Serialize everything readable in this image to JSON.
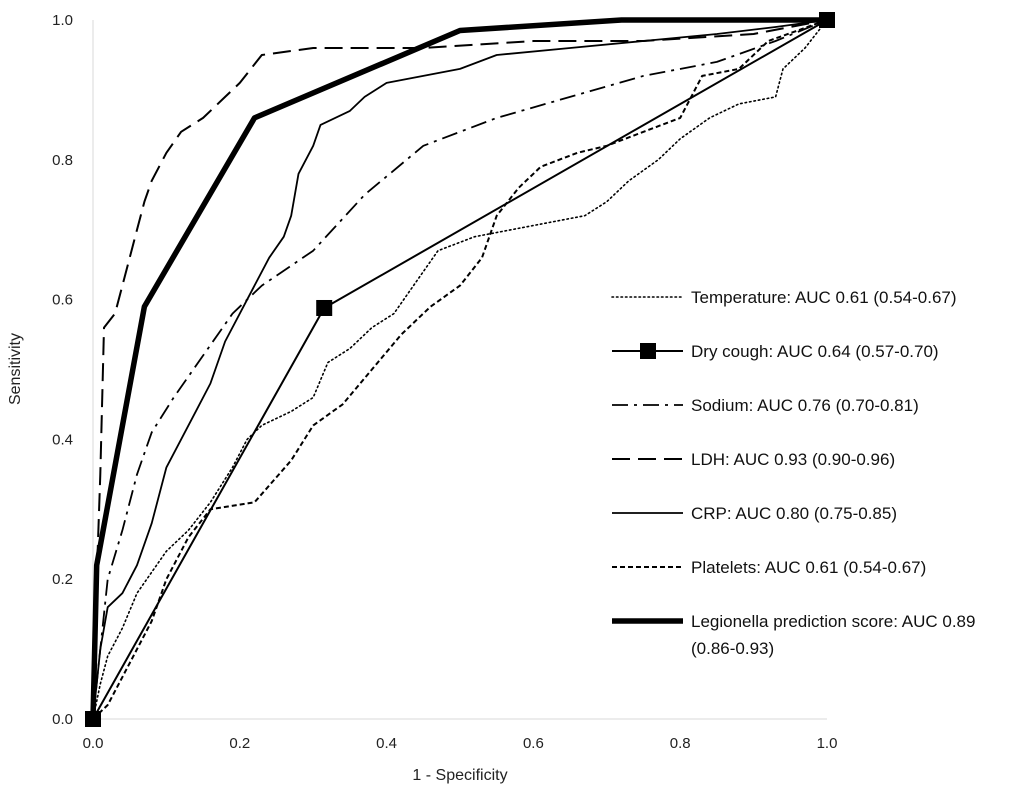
{
  "chart_data": {
    "type": "line",
    "title": "",
    "xlabel": "1 - Specificity",
    "ylabel": "Sensitivity",
    "xlim": [
      0,
      1
    ],
    "ylim": [
      0,
      1
    ],
    "x_ticks": [
      "0.0",
      "0.2",
      "0.4",
      "0.6",
      "0.8",
      "1.0"
    ],
    "y_ticks": [
      "0.0",
      "0.2",
      "0.4",
      "0.6",
      "0.8",
      "1.0"
    ],
    "grid": false,
    "legend_position": "right",
    "series": [
      {
        "name": "Temperature: AUC 0.61 (0.54-0.67)",
        "style": "dotted",
        "color": "#000000",
        "points": [
          [
            0,
            0
          ],
          [
            0.01,
            0.05
          ],
          [
            0.02,
            0.09
          ],
          [
            0.04,
            0.13
          ],
          [
            0.06,
            0.18
          ],
          [
            0.08,
            0.21
          ],
          [
            0.1,
            0.24
          ],
          [
            0.13,
            0.27
          ],
          [
            0.16,
            0.31
          ],
          [
            0.19,
            0.36
          ],
          [
            0.21,
            0.4
          ],
          [
            0.23,
            0.42
          ],
          [
            0.27,
            0.44
          ],
          [
            0.3,
            0.46
          ],
          [
            0.32,
            0.51
          ],
          [
            0.35,
            0.53
          ],
          [
            0.38,
            0.56
          ],
          [
            0.41,
            0.58
          ],
          [
            0.43,
            0.61
          ],
          [
            0.47,
            0.67
          ],
          [
            0.52,
            0.69
          ],
          [
            0.57,
            0.7
          ],
          [
            0.62,
            0.71
          ],
          [
            0.67,
            0.72
          ],
          [
            0.7,
            0.74
          ],
          [
            0.73,
            0.77
          ],
          [
            0.77,
            0.8
          ],
          [
            0.8,
            0.83
          ],
          [
            0.84,
            0.86
          ],
          [
            0.88,
            0.88
          ],
          [
            0.93,
            0.89
          ],
          [
            0.94,
            0.93
          ],
          [
            0.97,
            0.96
          ],
          [
            1.0,
            1.0
          ]
        ]
      },
      {
        "name": "Dry cough: AUC 0.64 (0.57-0.70)",
        "style": "solid-square-markers",
        "color": "#000000",
        "points": [
          [
            0,
            0
          ],
          [
            0.315,
            0.588
          ],
          [
            1.0,
            1.0
          ]
        ]
      },
      {
        "name": "Sodium: AUC 0.76 (0.70-0.81)",
        "style": "dash-dot",
        "color": "#000000",
        "points": [
          [
            0,
            0
          ],
          [
            0.01,
            0.1
          ],
          [
            0.02,
            0.2
          ],
          [
            0.04,
            0.27
          ],
          [
            0.06,
            0.35
          ],
          [
            0.08,
            0.41
          ],
          [
            0.11,
            0.46
          ],
          [
            0.15,
            0.52
          ],
          [
            0.19,
            0.58
          ],
          [
            0.23,
            0.62
          ],
          [
            0.3,
            0.67
          ],
          [
            0.37,
            0.75
          ],
          [
            0.45,
            0.82
          ],
          [
            0.55,
            0.86
          ],
          [
            0.65,
            0.89
          ],
          [
            0.75,
            0.92
          ],
          [
            0.85,
            0.94
          ],
          [
            0.93,
            0.97
          ],
          [
            1.0,
            1.0
          ]
        ]
      },
      {
        "name": "LDH: AUC 0.93 (0.90-0.96)",
        "style": "dashed",
        "color": "#000000",
        "points": [
          [
            0,
            0
          ],
          [
            0.005,
            0.2
          ],
          [
            0.01,
            0.35
          ],
          [
            0.015,
            0.56
          ],
          [
            0.03,
            0.58
          ],
          [
            0.04,
            0.62
          ],
          [
            0.05,
            0.66
          ],
          [
            0.06,
            0.7
          ],
          [
            0.07,
            0.74
          ],
          [
            0.08,
            0.77
          ],
          [
            0.1,
            0.81
          ],
          [
            0.12,
            0.84
          ],
          [
            0.15,
            0.86
          ],
          [
            0.18,
            0.89
          ],
          [
            0.2,
            0.91
          ],
          [
            0.23,
            0.95
          ],
          [
            0.3,
            0.96
          ],
          [
            0.45,
            0.96
          ],
          [
            0.6,
            0.97
          ],
          [
            0.75,
            0.97
          ],
          [
            0.9,
            0.98
          ],
          [
            1.0,
            1.0
          ]
        ]
      },
      {
        "name": "CRP: AUC 0.80 (0.75-0.85)",
        "style": "solid",
        "color": "#000000",
        "points": [
          [
            0,
            0
          ],
          [
            0.01,
            0.1
          ],
          [
            0.02,
            0.16
          ],
          [
            0.04,
            0.18
          ],
          [
            0.06,
            0.22
          ],
          [
            0.08,
            0.28
          ],
          [
            0.1,
            0.36
          ],
          [
            0.12,
            0.4
          ],
          [
            0.14,
            0.44
          ],
          [
            0.16,
            0.48
          ],
          [
            0.18,
            0.54
          ],
          [
            0.2,
            0.58
          ],
          [
            0.22,
            0.62
          ],
          [
            0.24,
            0.66
          ],
          [
            0.26,
            0.69
          ],
          [
            0.27,
            0.72
          ],
          [
            0.28,
            0.78
          ],
          [
            0.3,
            0.82
          ],
          [
            0.31,
            0.85
          ],
          [
            0.33,
            0.86
          ],
          [
            0.35,
            0.87
          ],
          [
            0.37,
            0.89
          ],
          [
            0.4,
            0.91
          ],
          [
            0.45,
            0.92
          ],
          [
            0.5,
            0.93
          ],
          [
            0.55,
            0.95
          ],
          [
            0.65,
            0.96
          ],
          [
            0.75,
            0.97
          ],
          [
            0.85,
            0.98
          ],
          [
            0.93,
            0.99
          ],
          [
            1.0,
            1.0
          ]
        ]
      },
      {
        "name": "Platelets: AUC 0.61 (0.54-0.67)",
        "style": "short-dashed",
        "color": "#000000",
        "points": [
          [
            0,
            0
          ],
          [
            0.02,
            0.02
          ],
          [
            0.05,
            0.08
          ],
          [
            0.08,
            0.14
          ],
          [
            0.1,
            0.2
          ],
          [
            0.13,
            0.26
          ],
          [
            0.16,
            0.3
          ],
          [
            0.22,
            0.31
          ],
          [
            0.27,
            0.37
          ],
          [
            0.3,
            0.42
          ],
          [
            0.34,
            0.45
          ],
          [
            0.38,
            0.5
          ],
          [
            0.42,
            0.55
          ],
          [
            0.46,
            0.59
          ],
          [
            0.5,
            0.62
          ],
          [
            0.53,
            0.66
          ],
          [
            0.55,
            0.72
          ],
          [
            0.58,
            0.76
          ],
          [
            0.61,
            0.79
          ],
          [
            0.66,
            0.81
          ],
          [
            0.7,
            0.82
          ],
          [
            0.75,
            0.84
          ],
          [
            0.8,
            0.86
          ],
          [
            0.83,
            0.92
          ],
          [
            0.88,
            0.93
          ],
          [
            0.92,
            0.97
          ],
          [
            1.0,
            1.0
          ]
        ]
      },
      {
        "name": "Legionella prediction score: AUC 0.89",
        "name_line2": "(0.86-0.93)",
        "style": "thick-solid",
        "color": "#000000",
        "points": [
          [
            0,
            0
          ],
          [
            0.005,
            0.22
          ],
          [
            0.07,
            0.59
          ],
          [
            0.22,
            0.86
          ],
          [
            0.5,
            0.985
          ],
          [
            0.72,
            1.0
          ],
          [
            1.0,
            1.0
          ]
        ]
      }
    ]
  }
}
